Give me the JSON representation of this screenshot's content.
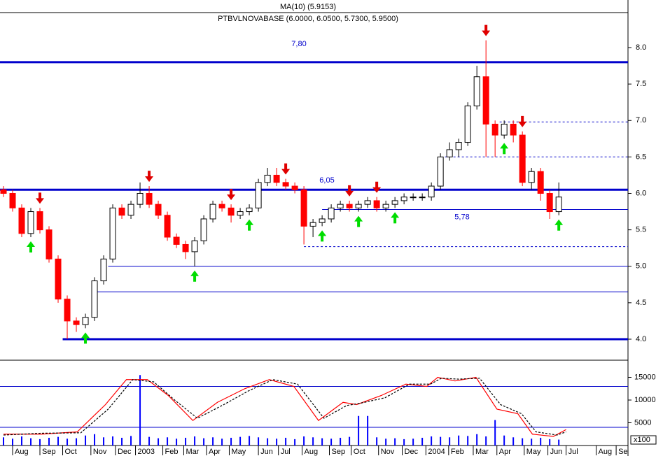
{
  "chart_data": [
    {
      "type": "candlestick",
      "title": "PTBVLNOVABASE (6.0000, 6.0500, 5.7300, 5.9500)",
      "subtitle": "MA(10) (5.9153)",
      "x": [
        0,
        1,
        2,
        3,
        4,
        5,
        6,
        7,
        8,
        9,
        10,
        11,
        12,
        13,
        14,
        15,
        16,
        17,
        18,
        19,
        20,
        21,
        22,
        23,
        24,
        25,
        26,
        27,
        28,
        29,
        30,
        31,
        32,
        33,
        34,
        35,
        36,
        37,
        38,
        39,
        40,
        41,
        42,
        43,
        44,
        45,
        46,
        47,
        48,
        49,
        50,
        51,
        52,
        53,
        54,
        55,
        56,
        57,
        58,
        59,
        60,
        61
      ],
      "open": [
        6.05,
        6.0,
        5.8,
        5.45,
        5.75,
        5.5,
        5.1,
        4.55,
        4.25,
        4.2,
        4.3,
        4.8,
        5.1,
        5.8,
        5.7,
        5.85,
        6.0,
        5.85,
        5.7,
        5.4,
        5.3,
        5.2,
        5.35,
        5.65,
        5.85,
        5.8,
        5.7,
        5.75,
        5.8,
        6.15,
        6.25,
        6.15,
        6.1,
        6.05,
        5.55,
        5.6,
        5.65,
        5.8,
        5.85,
        5.8,
        5.85,
        5.9,
        5.8,
        5.85,
        5.9,
        5.95,
        5.95,
        5.95,
        6.1,
        6.5,
        6.6,
        6.7,
        7.2,
        7.6,
        6.95,
        6.8,
        6.95,
        6.8,
        6.15,
        6.3,
        6.0,
        5.75
      ],
      "high": [
        6.1,
        6.05,
        5.85,
        5.8,
        5.8,
        5.55,
        5.15,
        4.6,
        4.3,
        4.35,
        4.85,
        5.15,
        5.85,
        5.85,
        5.9,
        6.15,
        6.1,
        5.9,
        5.75,
        5.45,
        5.35,
        5.4,
        5.7,
        5.9,
        5.9,
        5.85,
        5.8,
        5.85,
        6.2,
        6.35,
        6.35,
        6.2,
        6.15,
        6.1,
        5.65,
        5.7,
        5.85,
        5.9,
        5.9,
        5.9,
        5.95,
        5.95,
        5.9,
        5.95,
        6.0,
        6.0,
        6.0,
        6.15,
        6.55,
        6.7,
        6.75,
        7.25,
        7.75,
        8.1,
        7.0,
        7.0,
        7.0,
        6.85,
        6.35,
        6.35,
        6.05,
        6.15
      ],
      "low": [
        5.95,
        5.75,
        5.4,
        5.4,
        5.45,
        5.05,
        4.5,
        4.0,
        4.1,
        4.15,
        4.25,
        4.75,
        5.05,
        5.65,
        5.65,
        5.8,
        5.8,
        5.65,
        5.35,
        5.25,
        5.1,
        5.0,
        5.3,
        5.6,
        5.75,
        5.6,
        5.65,
        5.7,
        5.75,
        6.1,
        6.1,
        6.05,
        6.0,
        5.3,
        5.4,
        5.55,
        5.6,
        5.75,
        5.75,
        5.75,
        5.8,
        5.75,
        5.75,
        5.8,
        5.85,
        5.9,
        5.9,
        5.9,
        6.05,
        6.45,
        6.5,
        6.65,
        7.15,
        6.5,
        6.5,
        6.75,
        6.7,
        6.1,
        6.05,
        5.9,
        5.65,
        5.7
      ],
      "close": [
        6.0,
        5.8,
        5.45,
        5.75,
        5.5,
        5.1,
        4.55,
        4.25,
        4.2,
        4.3,
        4.8,
        5.1,
        5.8,
        5.7,
        5.85,
        6.0,
        5.85,
        5.7,
        5.4,
        5.3,
        5.2,
        5.35,
        5.65,
        5.85,
        5.8,
        5.7,
        5.75,
        5.8,
        6.15,
        6.25,
        6.15,
        6.1,
        6.05,
        5.55,
        5.6,
        5.65,
        5.8,
        5.85,
        5.8,
        5.85,
        5.9,
        5.8,
        5.85,
        5.9,
        5.95,
        5.95,
        5.95,
        6.1,
        6.5,
        6.6,
        6.7,
        7.2,
        7.6,
        6.95,
        6.8,
        6.95,
        6.8,
        6.15,
        6.3,
        6.0,
        5.75,
        5.95
      ],
      "up_color": "#ffffff",
      "down_color": "#ff0000",
      "sell_signals": [
        4,
        16,
        25,
        31,
        38,
        41,
        53,
        57
      ],
      "buy_signals": [
        3,
        9,
        21,
        27,
        35,
        39,
        43,
        55,
        61
      ],
      "levels": [
        {
          "value": 7.8,
          "label": "7,80",
          "from": -0.385,
          "style": "thick"
        },
        {
          "value": 6.05,
          "label": "6,05",
          "from": -0.385,
          "style": "thick"
        },
        {
          "value": 4.0,
          "from": 6.5,
          "style": "thick"
        },
        {
          "value": 5.0,
          "from": 11.5,
          "style": "thin"
        },
        {
          "value": 4.65,
          "from": 9.7,
          "style": "thin"
        },
        {
          "value": 5.78,
          "label": "5,78",
          "from": 35,
          "style": "thin"
        },
        {
          "value": 6.98,
          "from": 54.5,
          "style": "dashed"
        },
        {
          "value": 6.5,
          "from": 48.5,
          "style": "dashed"
        },
        {
          "value": 5.27,
          "from": 33,
          "style": "dashed"
        }
      ],
      "xlim": [
        -0.385,
        68.6
      ],
      "ylim": [
        3.76,
        8.48
      ],
      "yticks": [
        {
          "value": 4,
          "label": "4.0"
        },
        4.5,
        {
          "value": 5,
          "label": "5.0"
        },
        5.5,
        {
          "value": 6,
          "label": "6.0"
        },
        6.5,
        {
          "value": 7,
          "label": "7.0"
        },
        7.5,
        {
          "value": 8,
          "label": "8.0"
        }
      ]
    },
    {
      "type": "line",
      "series": [
        {
          "name": "%K",
          "color": "#ff0000",
          "dash": false,
          "x": [
            0,
            4.2,
            8.1,
            11.2,
            13.5,
            15.8,
            18.1,
            20.8,
            23.5,
            26.5,
            29.2,
            31.9,
            34.6,
            37.3,
            38.8,
            41.5,
            44.2,
            46.5,
            47.7,
            49.6,
            51.9,
            54.2,
            56.5,
            58.1,
            60.4,
            61.8
          ],
          "values": [
            2500,
            2500,
            3000,
            9000,
            14500,
            14500,
            11000,
            5500,
            9500,
            12500,
            14500,
            13000,
            5500,
            9500,
            9000,
            11000,
            13500,
            13000,
            15000,
            14200,
            15000,
            8000,
            7000,
            2500,
            2000,
            3500
          ]
        },
        {
          "name": "%D",
          "color": "#000000",
          "dash": true,
          "x": [
            0,
            4.2,
            8.5,
            11.5,
            14.2,
            16.5,
            18.8,
            21.3,
            24.2,
            26.9,
            29.6,
            32.3,
            35.2,
            37.7,
            39.2,
            41.9,
            44.6,
            46.9,
            48.1,
            50,
            52.3,
            54.6,
            56.9,
            58.5,
            60.8,
            61.8
          ],
          "values": [
            2300,
            2700,
            2800,
            8000,
            14500,
            14000,
            10000,
            6000,
            9000,
            12000,
            14500,
            13500,
            6000,
            8800,
            9300,
            10500,
            13500,
            13500,
            14800,
            14600,
            14800,
            9000,
            7000,
            3000,
            2300,
            3000
          ]
        }
      ],
      "volume": [
        1800,
        1500,
        2000,
        1600,
        1400,
        1700,
        1900,
        1500,
        1600,
        2200,
        2500,
        1800,
        2000,
        1700,
        2100,
        15500,
        1900,
        1600,
        1800,
        1500,
        1700,
        2000,
        1600,
        1800,
        1500,
        1700,
        1900,
        2100,
        1800,
        1600,
        1500,
        1700,
        1400,
        2000,
        1800,
        1600,
        1500,
        1700,
        1900,
        6500,
        6500,
        1800,
        1500,
        1600,
        1400,
        1500,
        1700,
        2000,
        1900,
        1800,
        2200,
        2100,
        2500,
        2000,
        5600,
        2200,
        1800,
        1600,
        1500,
        1700,
        1400,
        1300
      ],
      "volume_color": "#0000ff",
      "levels": [
        13000,
        4000
      ],
      "unit_label": "x100",
      "xlim": [
        -0.385,
        68.6
      ],
      "ylim": [
        0,
        18000
      ],
      "yticks": [
        5000,
        10000,
        15000
      ],
      "xticks": [
        {
          "value": 1.0,
          "label": "Aug"
        },
        {
          "value": 4.0,
          "label": "Sep"
        },
        {
          "value": 6.5,
          "label": "Oct"
        },
        {
          "value": 9.6,
          "label": "Nov"
        },
        {
          "value": 12.3,
          "label": "Dec"
        },
        {
          "value": 14.5,
          "label": "2003"
        },
        {
          "value": 17.5,
          "label": "Feb"
        },
        {
          "value": 19.8,
          "label": "Mar"
        },
        {
          "value": 22.3,
          "label": "Apr"
        },
        {
          "value": 24.8,
          "label": "May"
        },
        {
          "value": 28.0,
          "label": "Jun"
        },
        {
          "value": 30.2,
          "label": "Jul"
        },
        {
          "value": 32.8,
          "label": "Aug"
        },
        {
          "value": 35.8,
          "label": "Sep"
        },
        {
          "value": 38.2,
          "label": "Oct"
        },
        {
          "value": 41.2,
          "label": "Nov"
        },
        {
          "value": 43.8,
          "label": "Dec"
        },
        {
          "value": 46.4,
          "label": "2004"
        },
        {
          "value": 48.9,
          "label": "Feb"
        },
        {
          "value": 51.6,
          "label": "Mar"
        },
        {
          "value": 54.2,
          "label": "Apr"
        },
        {
          "value": 57.2,
          "label": "May"
        },
        {
          "value": 59.8,
          "label": "Jun"
        },
        {
          "value": 61.8,
          "label": "Jul"
        },
        {
          "value": 65.1,
          "label": "Aug"
        },
        {
          "value": 67.3,
          "label": "Se"
        }
      ]
    }
  ]
}
